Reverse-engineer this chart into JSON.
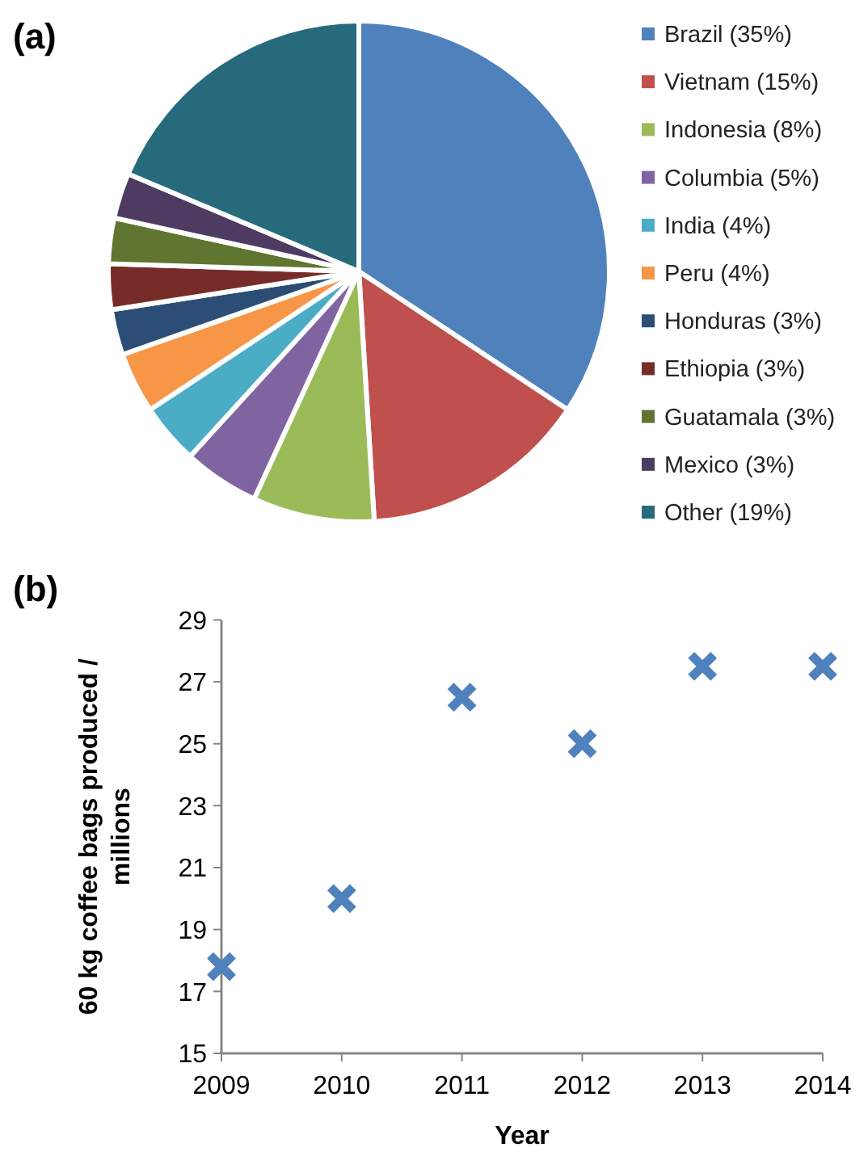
{
  "chart_data": [
    {
      "type": "pie",
      "title": "(a)",
      "categories": [
        "Brazil (35%)",
        "Vietnam (15%)",
        "Indonesia (8%)",
        "Columbia (5%)",
        "India (4%)",
        "Peru (4%)",
        "Honduras (3%)",
        "Ethiopia (3%)",
        "Guatamala (3%)",
        "Mexico (3%)",
        "Other (19%)"
      ],
      "values": [
        35,
        15,
        8,
        5,
        4,
        4,
        3,
        3,
        3,
        3,
        19
      ],
      "colors": [
        "#4f81bd",
        "#c0504d",
        "#9bbb59",
        "#8064a2",
        "#4bacc6",
        "#f79646",
        "#2c4d75",
        "#772c2a",
        "#5f7530",
        "#4d3b62",
        "#276a7c"
      ],
      "legend": "right"
    },
    {
      "type": "scatter",
      "title": "(b)",
      "xlabel": "Year",
      "ylabel": "60 kg coffee bags produced / millions",
      "x": [
        2009,
        2010,
        2011,
        2012,
        2013,
        2014
      ],
      "series": [
        {
          "color": "#4f81bd",
          "values": [
            17.8,
            20,
            26.5,
            25,
            27.5,
            27.5
          ]
        }
      ],
      "xlim": [
        2009,
        2014
      ],
      "xticks": [
        2009,
        2010,
        2011,
        2012,
        2013,
        2014
      ],
      "ylim": [
        15,
        29
      ],
      "yticks": [
        15,
        17,
        19,
        21,
        23,
        25,
        27,
        29
      ],
      "marker": "cross",
      "grid": false
    }
  ]
}
